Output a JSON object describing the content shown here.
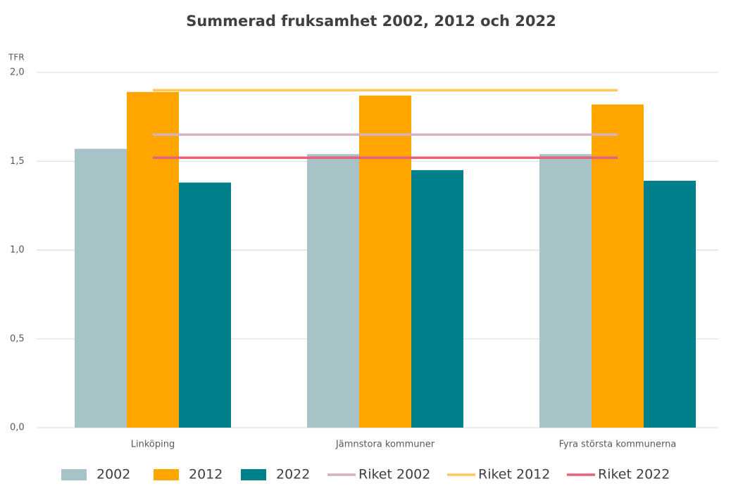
{
  "chart_data": {
    "type": "bar",
    "title": "Summerad fruksamhet 2002, 2012 och 2022",
    "y_label": "TFR",
    "categories": [
      "Linköping",
      "Jämnstora kommuner",
      "Fyra största kommunerna"
    ],
    "series": [
      {
        "name": "2002",
        "type": "bar",
        "color": "#a7c3c8",
        "values": [
          1.57,
          1.54,
          1.54
        ]
      },
      {
        "name": "2012",
        "type": "bar",
        "color": "#ffa500",
        "values": [
          1.89,
          1.87,
          1.82
        ]
      },
      {
        "name": "2022",
        "type": "bar",
        "color": "#00808a",
        "values": [
          1.38,
          1.45,
          1.39
        ]
      },
      {
        "name": "Riket 2002",
        "type": "line",
        "color": "#d4b0c0",
        "values": [
          1.65,
          1.65,
          1.65
        ]
      },
      {
        "name": "Riket 2012",
        "type": "line",
        "color": "#ffc85a",
        "values": [
          1.9,
          1.9,
          1.9
        ]
      },
      {
        "name": "Riket 2022",
        "type": "line",
        "color": "#e8637a",
        "values": [
          1.52,
          1.52,
          1.52
        ]
      }
    ],
    "ylim": [
      0,
      2
    ],
    "yticks": [
      {
        "value": 0,
        "label": "0,0"
      },
      {
        "value": 0.5,
        "label": "0,5"
      },
      {
        "value": 1,
        "label": "1,0"
      },
      {
        "value": 1.5,
        "label": "1,5"
      },
      {
        "value": 2,
        "label": "2,0"
      }
    ],
    "grid": true,
    "legend": "bottom"
  }
}
